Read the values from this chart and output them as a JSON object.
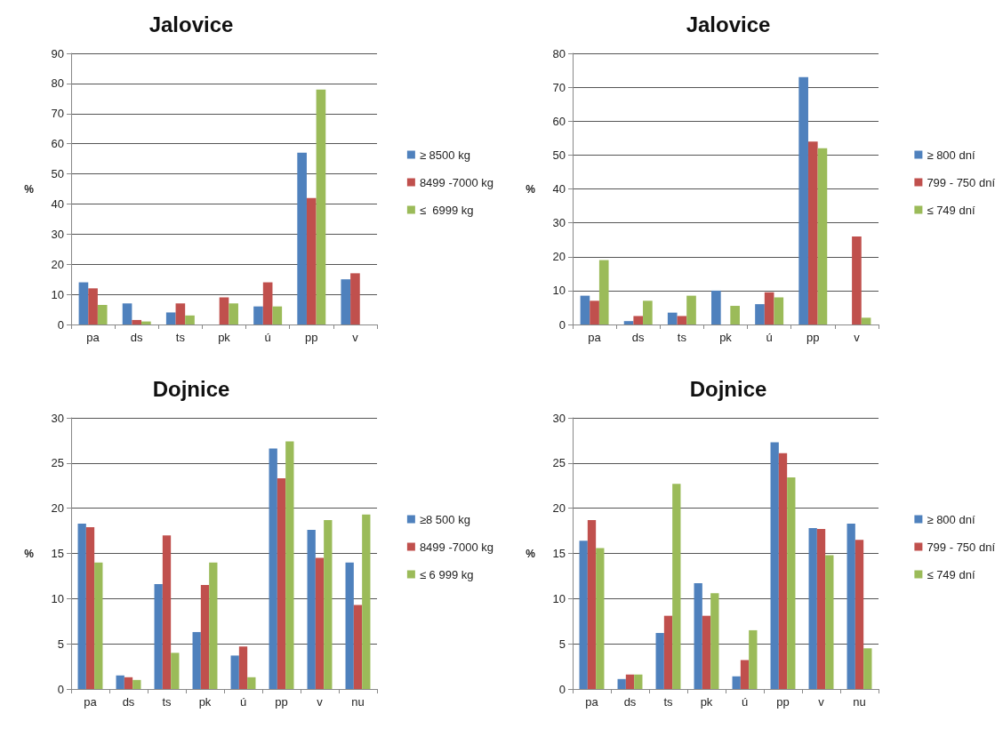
{
  "chart_data": [
    {
      "type": "bar",
      "title": "Jalovice",
      "ylabel": "%",
      "categories": [
        "pa",
        "ds",
        "ts",
        "pk",
        "ú",
        "pp",
        "v"
      ],
      "ylim": [
        0,
        90
      ],
      "yticks": [
        0,
        10,
        20,
        30,
        40,
        50,
        60,
        70,
        80,
        90
      ],
      "grid": "y",
      "legend": "right",
      "series": [
        {
          "name": "≥ 8500 kg",
          "color": "#4f81bd",
          "values": [
            14,
            7,
            4,
            0,
            6,
            57,
            15
          ]
        },
        {
          "name": "8499 -7000 kg",
          "color": "#c0504d",
          "values": [
            12,
            1.5,
            7,
            9,
            14,
            42,
            17
          ]
        },
        {
          "name": "≤  6999 kg",
          "color": "#9bbb59",
          "values": [
            6.5,
            1,
            3,
            7,
            6,
            78,
            0
          ]
        }
      ]
    },
    {
      "type": "bar",
      "title": "Jalovice",
      "ylabel": "%",
      "categories": [
        "pa",
        "ds",
        "ts",
        "pk",
        "ú",
        "pp",
        "v"
      ],
      "ylim": [
        0,
        80
      ],
      "yticks": [
        0,
        10,
        20,
        30,
        40,
        50,
        60,
        70,
        80
      ],
      "grid": "y",
      "legend": "right",
      "series": [
        {
          "name": "≥ 800 dní",
          "color": "#4f81bd",
          "values": [
            8.5,
            1,
            3.5,
            10,
            6,
            73,
            0
          ]
        },
        {
          "name": "799 - 750 dní",
          "color": "#c0504d",
          "values": [
            7,
            2.5,
            2.5,
            0,
            9.5,
            54,
            26
          ]
        },
        {
          "name": "≤ 749 dní",
          "color": "#9bbb59",
          "values": [
            19,
            7,
            8.5,
            5.5,
            8,
            52,
            2
          ]
        }
      ]
    },
    {
      "type": "bar",
      "title": "Dojnice",
      "ylabel": "%",
      "categories": [
        "pa",
        "ds",
        "ts",
        "pk",
        "ú",
        "pp",
        "v",
        "nu"
      ],
      "ylim": [
        0,
        30
      ],
      "yticks": [
        0,
        5,
        10,
        15,
        20,
        25,
        30
      ],
      "grid": "y",
      "legend": "right",
      "series": [
        {
          "name": "≥8 500 kg",
          "color": "#4f81bd",
          "values": [
            18.3,
            1.5,
            11.6,
            6.3,
            3.7,
            26.6,
            17.6,
            14
          ]
        },
        {
          "name": "8499 -7000 kg",
          "color": "#c0504d",
          "values": [
            17.9,
            1.3,
            17,
            11.5,
            4.7,
            23.3,
            14.5,
            9.3
          ]
        },
        {
          "name": "≤ 6 999 kg",
          "color": "#9bbb59",
          "values": [
            14,
            1,
            4,
            14,
            1.3,
            27.4,
            18.7,
            19.3
          ]
        }
      ]
    },
    {
      "type": "bar",
      "title": "Dojnice",
      "ylabel": "%",
      "categories": [
        "pa",
        "ds",
        "ts",
        "pk",
        "ú",
        "pp",
        "v",
        "nu"
      ],
      "ylim": [
        0,
        30
      ],
      "yticks": [
        0,
        5,
        10,
        15,
        20,
        25,
        30
      ],
      "grid": "y",
      "legend": "right",
      "series": [
        {
          "name": "≥ 800 dní",
          "color": "#4f81bd",
          "values": [
            16.4,
            1.1,
            6.2,
            11.7,
            1.4,
            27.3,
            17.8,
            18.3
          ]
        },
        {
          "name": "799 - 750 dní",
          "color": "#c0504d",
          "values": [
            18.7,
            1.6,
            8.1,
            8.1,
            3.2,
            26.1,
            17.7,
            16.5
          ]
        },
        {
          "name": "≤ 749 dní",
          "color": "#9bbb59",
          "values": [
            15.6,
            1.6,
            22.7,
            10.6,
            6.5,
            23.4,
            14.8,
            4.5
          ]
        }
      ]
    }
  ]
}
